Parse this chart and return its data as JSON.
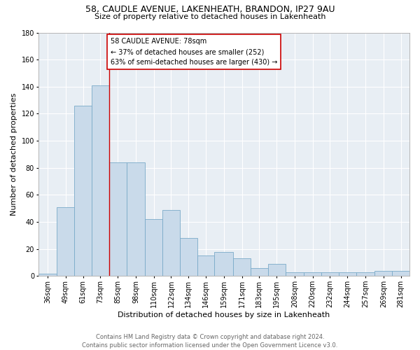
{
  "title_line1": "58, CAUDLE AVENUE, LAKENHEATH, BRANDON, IP27 9AU",
  "title_line2": "Size of property relative to detached houses in Lakenheath",
  "xlabel": "Distribution of detached houses by size in Lakenheath",
  "ylabel": "Number of detached properties",
  "footer_line1": "Contains HM Land Registry data © Crown copyright and database right 2024.",
  "footer_line2": "Contains public sector information licensed under the Open Government Licence v3.0.",
  "categories": [
    "36sqm",
    "49sqm",
    "61sqm",
    "73sqm",
    "85sqm",
    "98sqm",
    "110sqm",
    "122sqm",
    "134sqm",
    "146sqm",
    "159sqm",
    "171sqm",
    "183sqm",
    "195sqm",
    "208sqm",
    "220sqm",
    "232sqm",
    "244sqm",
    "257sqm",
    "269sqm",
    "281sqm"
  ],
  "values": [
    2,
    51,
    126,
    141,
    84,
    84,
    42,
    49,
    28,
    15,
    18,
    13,
    6,
    9,
    3,
    3,
    3,
    3,
    3,
    4,
    4
  ],
  "bar_color": "#c9daea",
  "bar_edge_color": "#7aaac8",
  "background_color": "#ffffff",
  "plot_bg_color": "#e8eef4",
  "grid_color": "#ffffff",
  "annotation_text_line1": "58 CAUDLE AVENUE: 78sqm",
  "annotation_text_line2": "← 37% of detached houses are smaller (252)",
  "annotation_text_line3": "63% of semi-detached houses are larger (430) →",
  "annotation_box_color": "#ffffff",
  "annotation_box_edge_color": "#cc0000",
  "vline_color": "#cc0000",
  "vline_x_bin": 3,
  "ylim": [
    0,
    180
  ],
  "yticks": [
    0,
    20,
    40,
    60,
    80,
    100,
    120,
    140,
    160,
    180
  ],
  "bin_edges": [
    30,
    43,
    55,
    67,
    79,
    91,
    104,
    116,
    128,
    140,
    152,
    165,
    177,
    189,
    201,
    214,
    226,
    238,
    250,
    263,
    275,
    287
  ],
  "title_fontsize": 9,
  "subtitle_fontsize": 8,
  "tick_fontsize": 7,
  "ylabel_fontsize": 8,
  "xlabel_fontsize": 8,
  "annotation_fontsize": 7,
  "footer_fontsize": 6
}
